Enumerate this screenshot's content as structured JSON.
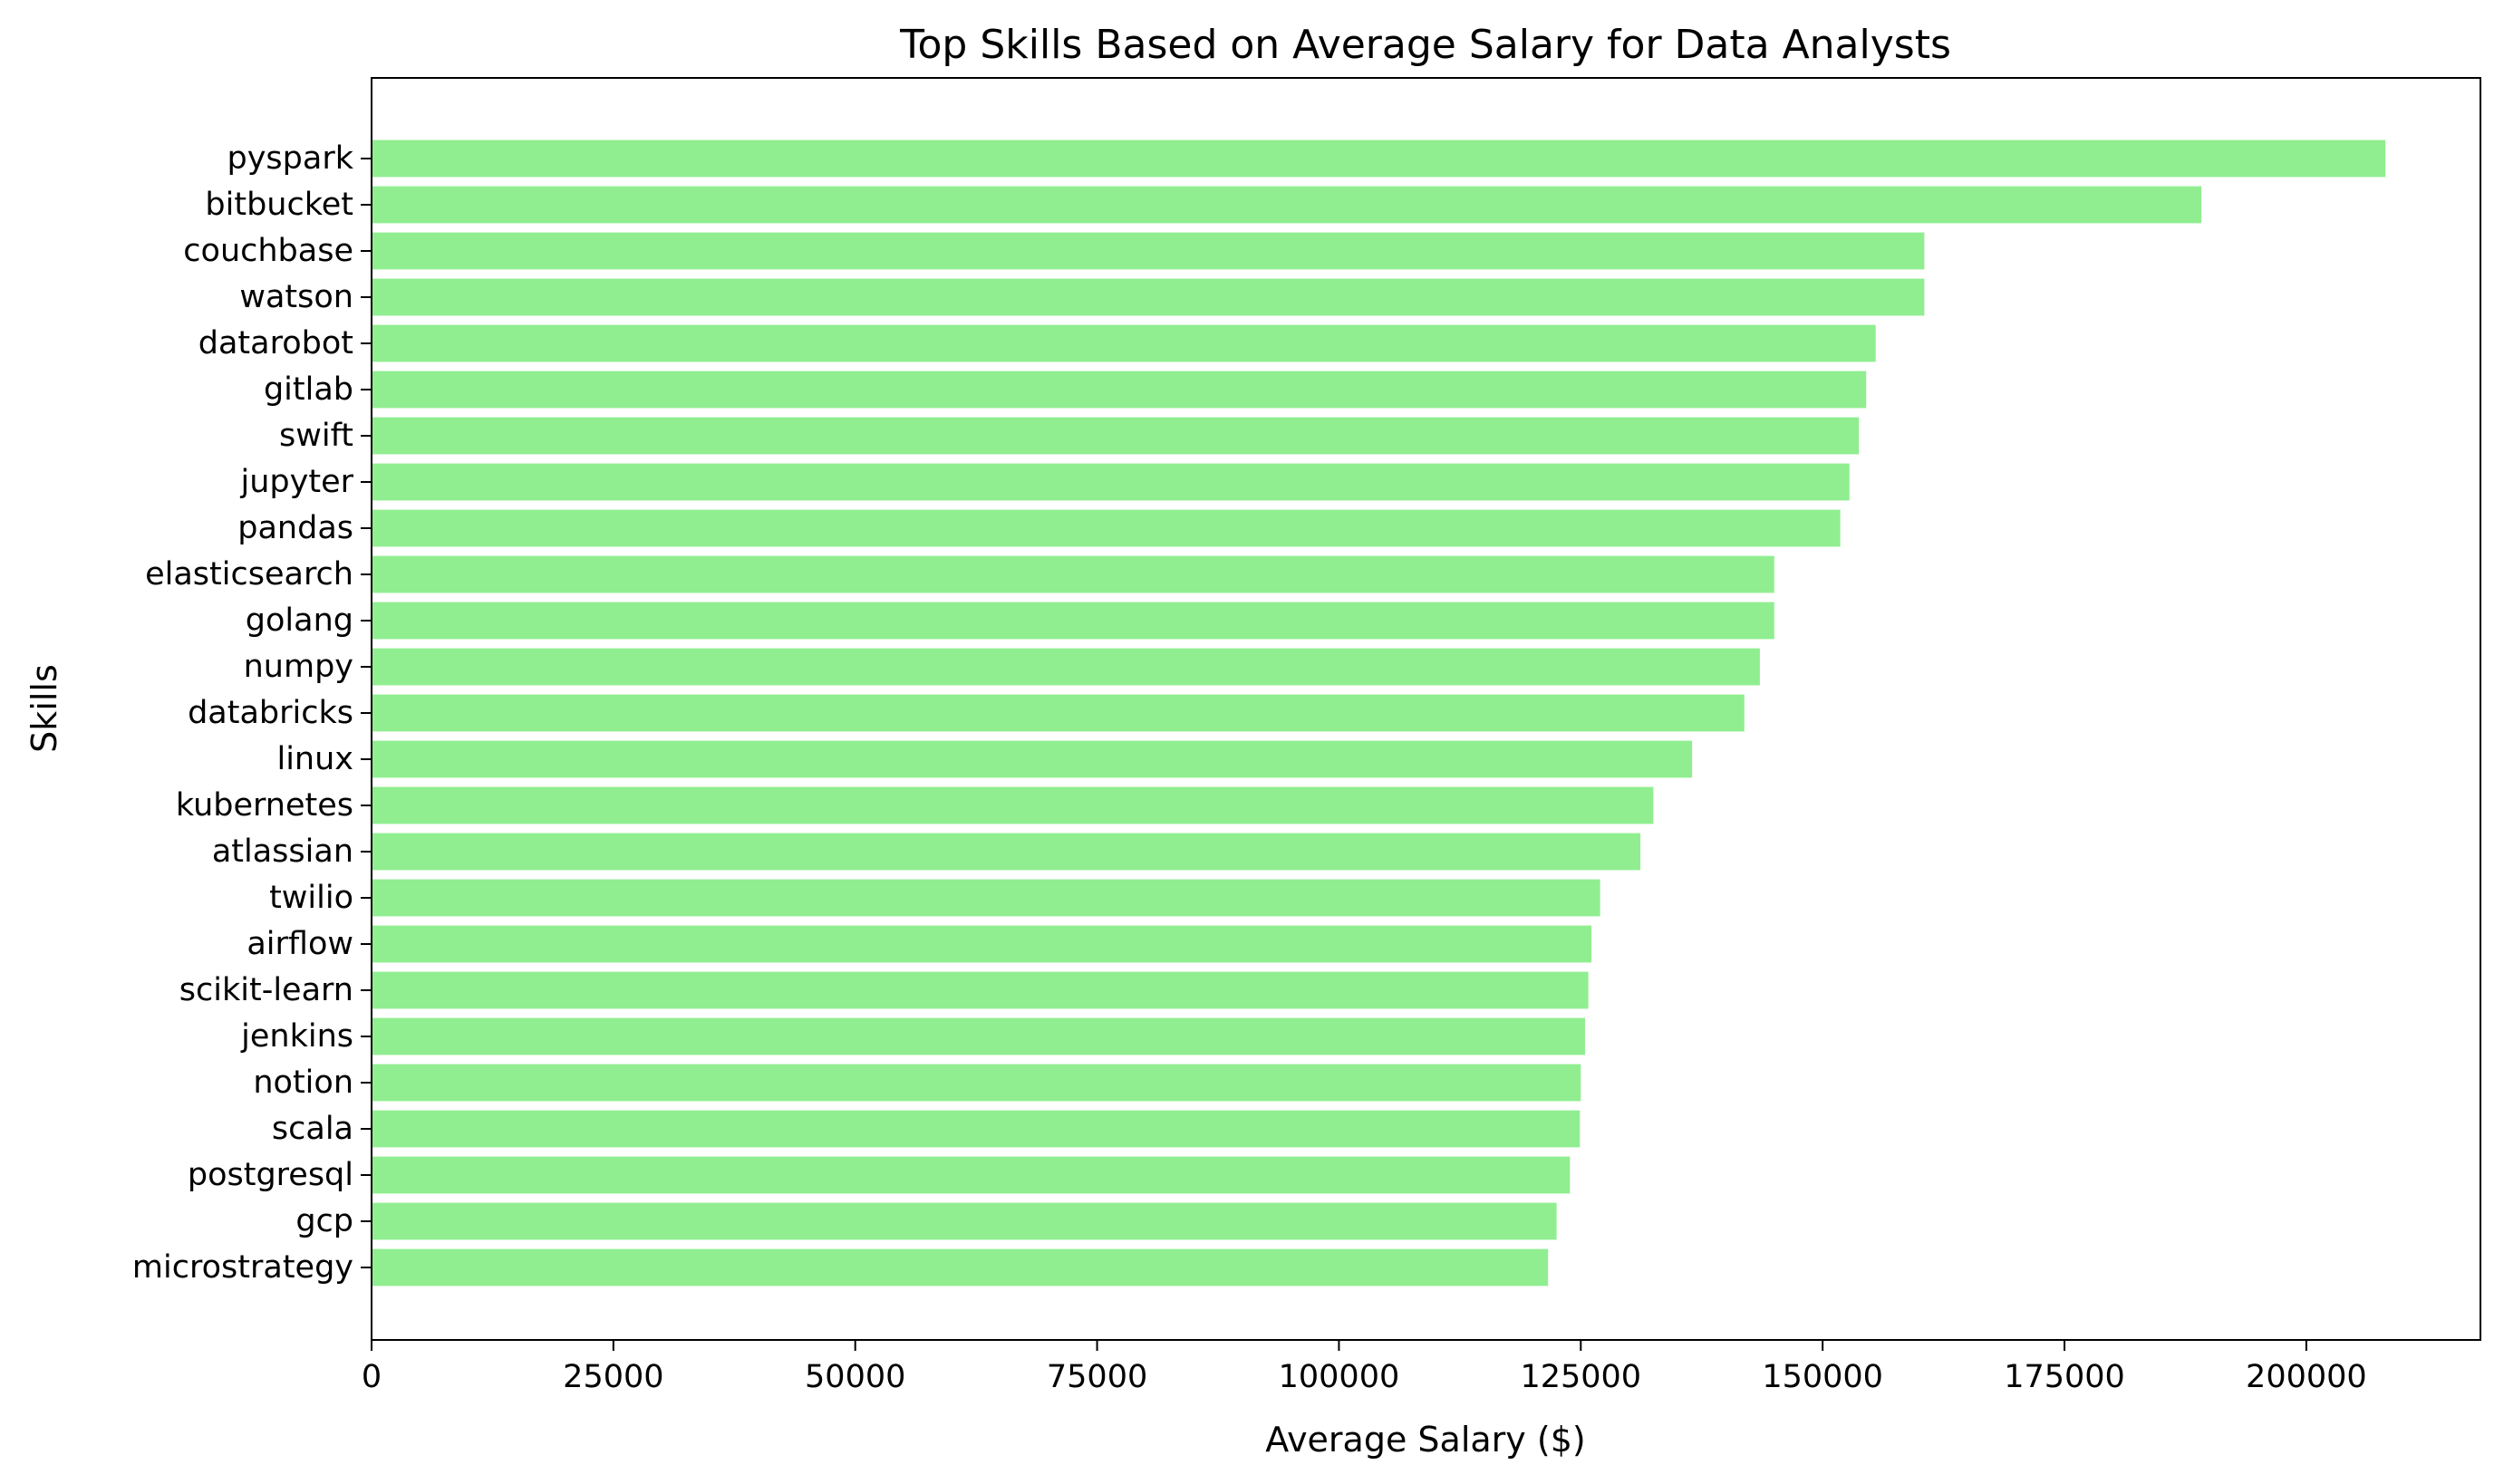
{
  "chart_data": {
    "type": "bar",
    "orientation": "horizontal",
    "title": "Top Skills Based on Average Salary for Data Analysts",
    "xlabel": "Average Salary ($)",
    "ylabel": "Skills",
    "categories": [
      "pyspark",
      "bitbucket",
      "couchbase",
      "watson",
      "datarobot",
      "gitlab",
      "swift",
      "jupyter",
      "pandas",
      "elasticsearch",
      "golang",
      "numpy",
      "databricks",
      "linux",
      "kubernetes",
      "atlassian",
      "twilio",
      "airflow",
      "scikit-learn",
      "jenkins",
      "notion",
      "scala",
      "postgresql",
      "gcp",
      "microstrategy"
    ],
    "values": [
      208172,
      189155,
      160515,
      160515,
      155486,
      154500,
      153750,
      152777,
      151821,
      145000,
      145000,
      143513,
      141907,
      136508,
      132500,
      131162,
      127000,
      126103,
      125781,
      125436,
      125000,
      124903,
      123879,
      122500,
      121619
    ],
    "xlim": [
      0,
      218000
    ],
    "xticks": [
      0,
      25000,
      50000,
      75000,
      100000,
      125000,
      150000,
      175000,
      200000
    ],
    "xtick_labels": [
      "0",
      "25000",
      "50000",
      "75000",
      "100000",
      "125000",
      "150000",
      "175000",
      "200000"
    ],
    "bar_color": "#90ee90",
    "grid": false,
    "legend": "none"
  }
}
